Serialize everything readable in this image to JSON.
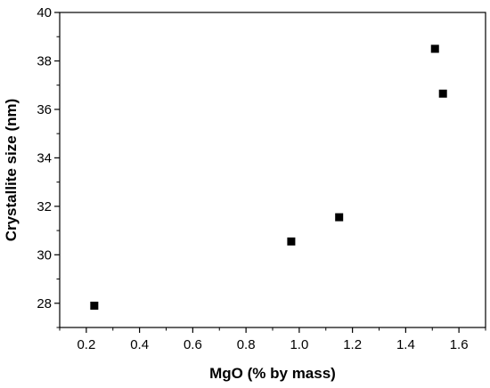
{
  "chart_data": {
    "type": "scatter",
    "title": "",
    "xlabel": "MgO (% by mass)",
    "ylabel": "Crystallite size (nm)",
    "xlim": [
      0.1,
      1.7
    ],
    "ylim": [
      27,
      40
    ],
    "x_ticks": [
      "0.2",
      "0.4",
      "0.6",
      "0.8",
      "1.0",
      "1.2",
      "1.4",
      "1.6"
    ],
    "y_ticks": [
      "28",
      "30",
      "32",
      "34",
      "36",
      "38",
      "40"
    ],
    "grid": false,
    "legend": "none",
    "series": [
      {
        "marker": "square",
        "color": "#000000",
        "points": [
          {
            "x": 0.23,
            "y": 27.9
          },
          {
            "x": 0.97,
            "y": 30.55
          },
          {
            "x": 1.15,
            "y": 31.55
          },
          {
            "x": 1.51,
            "y": 38.5
          },
          {
            "x": 1.54,
            "y": 36.65
          }
        ]
      }
    ]
  }
}
